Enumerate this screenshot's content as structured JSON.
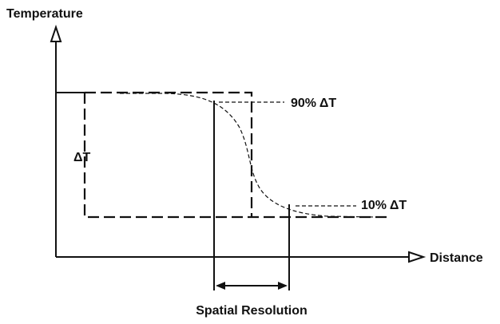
{
  "axes": {
    "y_label": "Temperature",
    "x_label": "Distance"
  },
  "labels": {
    "upper": "90% ΔT",
    "lower": "10% ΔT",
    "step": "ΔT",
    "resolution": "Spatial Resolution"
  }
}
